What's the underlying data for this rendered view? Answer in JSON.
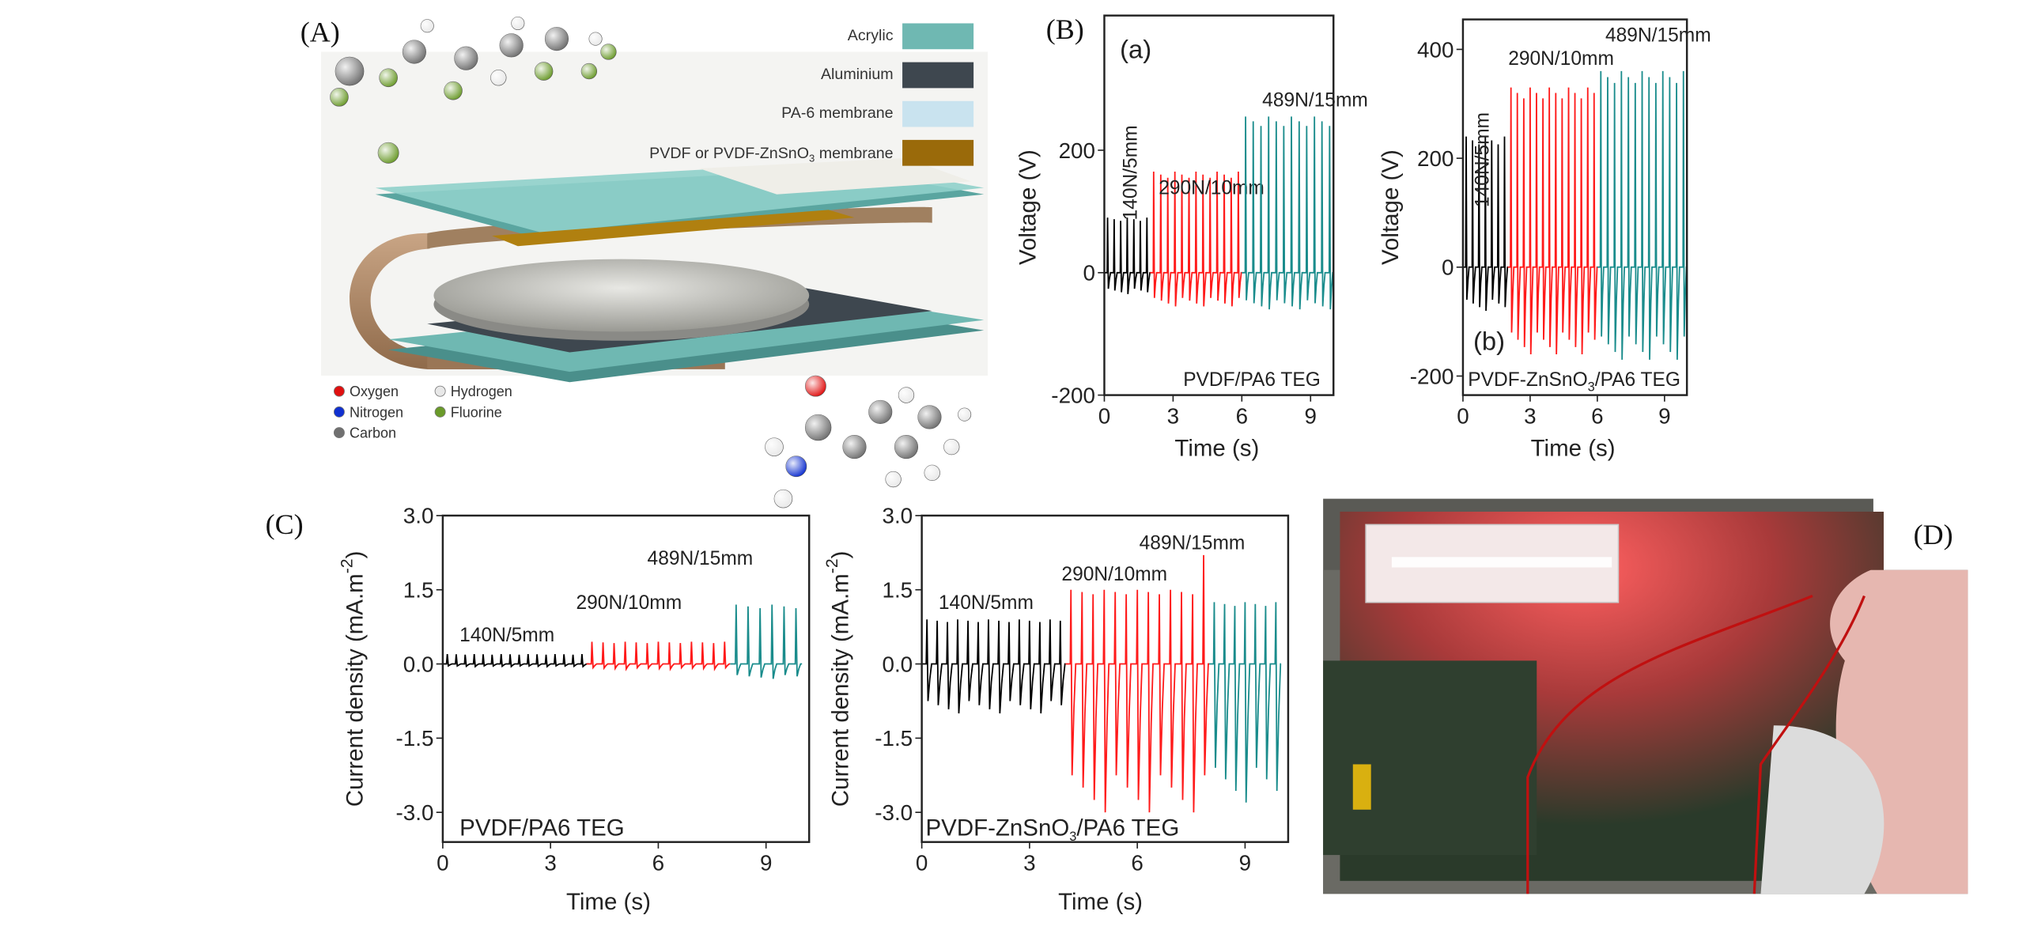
{
  "panel_labels": {
    "A": "(A)",
    "B": "(B)",
    "C": "(C)",
    "D": "(D)"
  },
  "panel_a": {
    "layer_legend": [
      {
        "label": "Acrylic",
        "color": "#6fb8b2"
      },
      {
        "label": "Aluminium",
        "color": "#3e474f"
      },
      {
        "label": "PA-6 membrane",
        "color": "#c9e3ef"
      },
      {
        "label_parts": [
          "PVDF or PVDF-ZnSnO",
          "3",
          " membrane"
        ],
        "color": "#9a6a0a"
      }
    ],
    "atom_legend": [
      {
        "label": "Oxygen",
        "color": "#e01010"
      },
      {
        "label": "Nitrogen",
        "color": "#1030d0"
      },
      {
        "label": "Carbon",
        "color": "#707070"
      },
      {
        "label": "Hydrogen",
        "color": "#e8e8e8"
      },
      {
        "label": "Fluorine",
        "color": "#6a9a2a"
      }
    ]
  },
  "colors": {
    "low": "#000000",
    "mid": "#ff1a1a",
    "high": "#1a8c8c"
  },
  "chart_data": [
    {
      "id": "B-a",
      "type": "line",
      "tag": "(a)",
      "title_parts": [
        "PVDF/PA6 TEG"
      ],
      "xlabel": "Time (s)",
      "ylabel": "Voltage (V)",
      "xlim": [
        0,
        10
      ],
      "ylim": [
        -200,
        420
      ],
      "xticks": [
        "0",
        "3",
        "6",
        "9"
      ],
      "yticks": [
        "-200",
        "0",
        "200"
      ],
      "series": [
        {
          "name": "140N/5mm",
          "t": [
            0,
            2
          ],
          "pulses": 7,
          "peak": 90,
          "min": -35
        },
        {
          "name": "290N/10mm",
          "t": [
            2,
            6
          ],
          "pulses": 13,
          "peak": 165,
          "min": -55
        },
        {
          "name": "489N/15mm",
          "t": [
            6,
            10
          ],
          "pulses": 12,
          "peak": 255,
          "min": -60
        }
      ]
    },
    {
      "id": "B-b",
      "type": "line",
      "tag": "(b)",
      "title_parts": [
        "PVDF-ZnSnO",
        "3",
        "/PA6 TEG"
      ],
      "xlabel": "Time (s)",
      "ylabel": "Voltage (V)",
      "xlim": [
        0,
        10
      ],
      "ylim": [
        -235,
        455
      ],
      "xticks": [
        "0",
        "3",
        "6",
        "9"
      ],
      "yticks": [
        "-200",
        "0",
        "200",
        "400"
      ],
      "series": [
        {
          "name": "140N/5mm",
          "t": [
            0,
            2
          ],
          "pulses": 7,
          "peak": 240,
          "min": -80
        },
        {
          "name": "290N/10mm",
          "t": [
            2,
            6
          ],
          "pulses": 14,
          "peak": 330,
          "min": -160
        },
        {
          "name": "489N/15mm",
          "t": [
            6,
            10
          ],
          "pulses": 13,
          "peak": 360,
          "min": -170
        }
      ]
    },
    {
      "id": "C-a",
      "type": "line",
      "title_parts": [
        "PVDF/PA6 TEG"
      ],
      "xlabel": "Time (s)",
      "ylabel_parts": [
        "Current density (mA.m",
        "-2",
        ")"
      ],
      "xlim": [
        0,
        10.2
      ],
      "ylim": [
        -3.6,
        3.0
      ],
      "xticks": [
        "0",
        "3",
        "6",
        "9"
      ],
      "yticks": [
        "-3.0",
        "-1.5",
        "0.0",
        "1.5",
        "3.0"
      ],
      "series": [
        {
          "name": "140N/5mm",
          "t": [
            0,
            4
          ],
          "pulses": 16,
          "peak": 0.2,
          "min": -0.05
        },
        {
          "name": "290N/10mm",
          "t": [
            4,
            8
          ],
          "pulses": 13,
          "peak": 0.45,
          "min": -0.1
        },
        {
          "name": "489N/15mm",
          "t": [
            8,
            10
          ],
          "pulses": 6,
          "peak": 1.2,
          "min": -0.3
        }
      ]
    },
    {
      "id": "C-b",
      "type": "line",
      "title_parts": [
        "PVDF-ZnSnO",
        "3",
        "/PA6 TEG"
      ],
      "xlabel": "Time (s)",
      "ylabel_parts": [
        "Current density (mA.m",
        "-2",
        ")"
      ],
      "xlim": [
        0,
        10.2
      ],
      "ylim": [
        -3.6,
        3.0
      ],
      "xticks": [
        "0",
        "3",
        "6",
        "9"
      ],
      "yticks": [
        "-3.0",
        "-1.5",
        "0.0",
        "1.5",
        "3.0"
      ],
      "series": [
        {
          "name": "140N/5mm",
          "t": [
            0,
            4
          ],
          "pulses": 14,
          "peak": 0.9,
          "min": -1.0
        },
        {
          "name": "290N/10mm",
          "t": [
            4,
            8
          ],
          "pulses": 13,
          "peak": 1.5,
          "min": -3.0,
          "max_spike": 2.2
        },
        {
          "name": "489N/15mm",
          "t": [
            8,
            10
          ],
          "pulses": 7,
          "peak": 1.25,
          "min": -2.8
        }
      ]
    }
  ]
}
